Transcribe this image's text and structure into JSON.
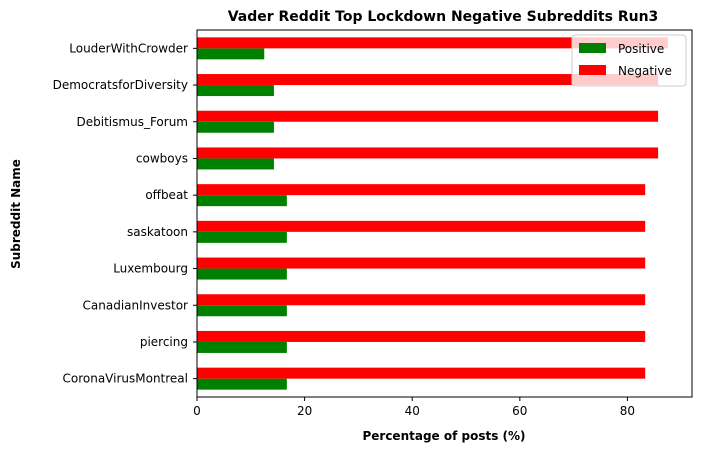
{
  "chart_data": {
    "type": "bar",
    "orientation": "horizontal",
    "title": "Vader Reddit Top Lockdown Negative Subreddits Run3",
    "xlabel": "Percentage of posts (%)",
    "ylabel": "Subreddit Name",
    "xlim": [
      0,
      92
    ],
    "xticks": [
      0,
      20,
      40,
      60,
      80
    ],
    "grid": false,
    "legend_position": "top-right",
    "categories": [
      "CoronaVirusMontreal",
      "piercing",
      "CanadianInvestor",
      "Luxembourg",
      "saskatoon",
      "offbeat",
      "cowboys",
      "Debitismus_Forum",
      "DemocratsforDiversity",
      "LouderWithCrowder"
    ],
    "series": [
      {
        "name": "Positive",
        "color": "#008000",
        "values": [
          16.7,
          16.7,
          16.7,
          16.7,
          16.7,
          16.7,
          14.3,
          14.3,
          14.3,
          12.5
        ]
      },
      {
        "name": "Negative",
        "color": "#ff0000",
        "values": [
          83.3,
          83.3,
          83.3,
          83.3,
          83.3,
          83.3,
          85.7,
          85.7,
          85.7,
          87.5
        ]
      }
    ]
  }
}
